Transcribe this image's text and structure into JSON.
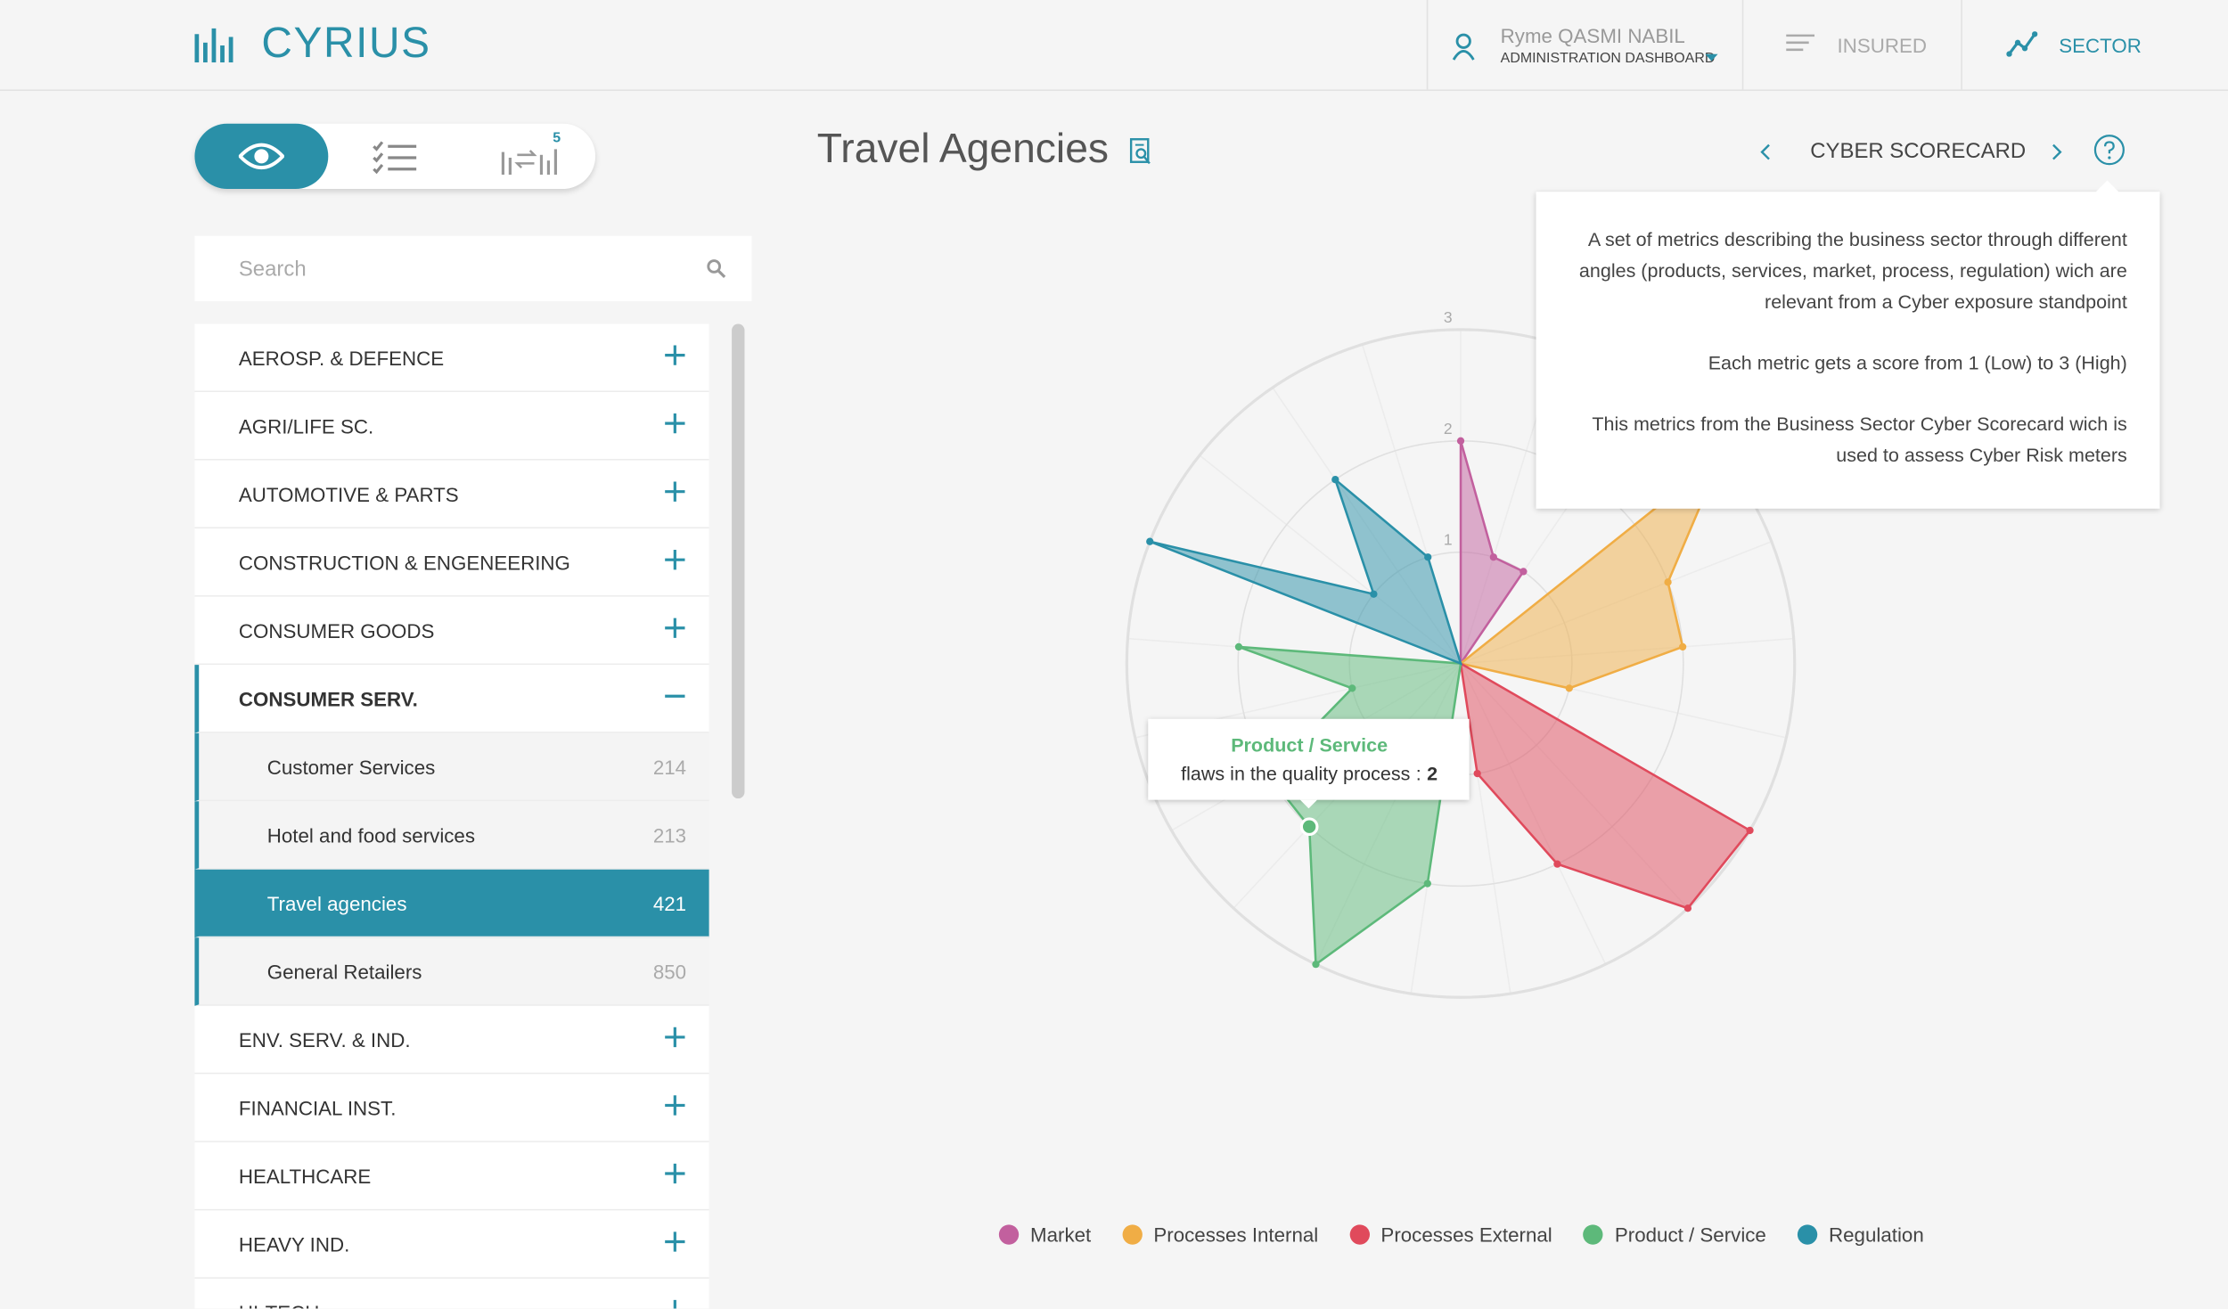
{
  "header": {
    "logo": "CYRIUS",
    "user": "Ryme QASMI NABIL",
    "role": "ADMINISTRATION DASHBOARD",
    "nav": [
      "INSURED",
      "SECTOR"
    ]
  },
  "toggle": {
    "badge": 5
  },
  "search": {
    "placeholder": "Search"
  },
  "sectors": [
    {
      "name": "AEROSP. & DEFENCE"
    },
    {
      "name": "AGRI/LIFE SC."
    },
    {
      "name": "AUTOMOTIVE & PARTS"
    },
    {
      "name": "CONSTRUCTION & ENGENEERING"
    },
    {
      "name": "CONSUMER GOODS"
    },
    {
      "name": "CONSUMER SERV.",
      "expanded": true,
      "children": [
        {
          "name": "Customer Services",
          "count": 214
        },
        {
          "name": "Hotel and food services",
          "count": 213
        },
        {
          "name": "Travel agencies",
          "count": 421,
          "selected": true
        },
        {
          "name": "General Retailers",
          "count": 850
        }
      ]
    },
    {
      "name": "ENV. SERV. & IND."
    },
    {
      "name": "FINANCIAL INST."
    },
    {
      "name": "HEALTHCARE"
    },
    {
      "name": "HEAVY IND."
    },
    {
      "name": "HI-TECH"
    }
  ],
  "page": {
    "title": "Travel Agencies",
    "scorecard": "CYBER SCORECARD"
  },
  "help": {
    "paragraphs": [
      "A set of metrics describing the business sector through different angles (products, services, market, process, regulation) wich are relevant from a Cyber exposure standpoint",
      "Each metric gets a score from 1 (Low) to 3 (High)",
      "This metrics from the Business Sector Cyber Scorecard wich is used to assess Cyber Risk meters"
    ]
  },
  "chart_data": {
    "type": "radar",
    "rlim": [
      0,
      3
    ],
    "rticks": [
      1,
      2,
      3
    ],
    "grid": true,
    "legend": "bottom",
    "categories": [
      null,
      null,
      null,
      null,
      null,
      null,
      null,
      null,
      null,
      null,
      null,
      null,
      null,
      "flaws in the quality process",
      null,
      null,
      null,
      null,
      null,
      null,
      null
    ],
    "series": [
      {
        "name": "Market",
        "color": "#c2609e",
        "values": [
          2,
          1,
          1,
          null,
          null,
          null,
          null,
          null,
          null,
          null,
          null,
          null,
          null,
          null,
          null,
          null,
          null,
          null,
          null,
          null,
          null
        ]
      },
      {
        "name": "Processes Internal",
        "color": "#f0ad45",
        "values": [
          null,
          null,
          null,
          3,
          2,
          2,
          1,
          null,
          null,
          null,
          null,
          null,
          null,
          null,
          null,
          null,
          null,
          null,
          null,
          null,
          null
        ]
      },
      {
        "name": "Processes External",
        "color": "#e04a5c",
        "values": [
          null,
          null,
          null,
          null,
          null,
          null,
          null,
          3,
          3,
          2,
          1,
          null,
          null,
          null,
          null,
          null,
          null,
          null,
          null,
          null,
          null
        ]
      },
      {
        "name": "Product / Service",
        "color": "#5db97a",
        "values": [
          null,
          null,
          null,
          null,
          null,
          null,
          null,
          null,
          null,
          null,
          null,
          2,
          3,
          2,
          2,
          1,
          2,
          null,
          null,
          null,
          null
        ]
      },
      {
        "name": "Regulation",
        "color": "#2a90a8",
        "values": [
          null,
          null,
          null,
          null,
          null,
          null,
          null,
          null,
          null,
          null,
          null,
          null,
          null,
          null,
          null,
          null,
          null,
          3,
          1,
          2,
          1
        ]
      }
    ],
    "tooltip": {
      "series": 3,
      "index": 13,
      "separator": ":"
    }
  }
}
